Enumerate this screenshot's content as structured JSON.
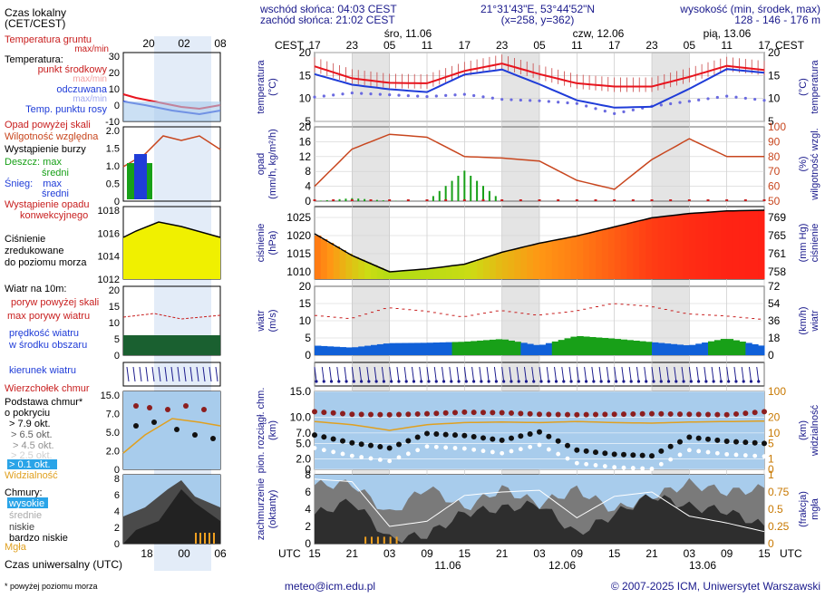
{
  "header": {
    "sunrise": "wschód słońca: 04:03 CEST",
    "sunset": "zachód słońca: 21:02 CEST",
    "coords": "21°31'43\"E, 53°44'52\"N",
    "grid": "(x=258,  y=362)",
    "elevation_label": "wysokość (min, środek, max)",
    "elevation_values": "128 - 146 - 176 m"
  },
  "time_axis": {
    "top_tz": "CEST",
    "bottom_tz": "UTC",
    "top_hours": [
      "17",
      "23",
      "05",
      "11",
      "17",
      "23",
      "05",
      "11",
      "17",
      "23",
      "05",
      "11",
      "17"
    ],
    "bottom_hours": [
      "15",
      "21",
      "03",
      "09",
      "15",
      "21",
      "03",
      "09",
      "15",
      "21",
      "03",
      "09",
      "15"
    ],
    "days_top": [
      "śro, 11.06",
      "czw, 12.06",
      "pią, 13.06"
    ],
    "days_bottom": [
      "11.06",
      "12.06",
      "13.06"
    ],
    "legend_top_hours": [
      "20",
      "02",
      "08"
    ],
    "legend_bottom_hours": [
      "18",
      "00",
      "06"
    ]
  },
  "legend": {
    "czas_lokalny": "Czas lokalny",
    "cet_cest": "(CET/CEST)",
    "temp_gruntu": "Temperatura gruntu",
    "temp_gruntu_sub": "max/min",
    "temperatura": "Temperatura:",
    "punkt_srodkowy": "punkt środkowy",
    "max_min": "max/min",
    "odczuwana": "odczuwana",
    "odczuwana_sub": "max/min",
    "temp_rosy": "Temp. punktu rosy",
    "opad_powyzej": "Opad powyżej skali",
    "wilgotnosc": "Wilgotność względna",
    "burza": "Wystąpienie burzy",
    "deszcz": "Deszcz: max",
    "deszcz_sredni": "średni",
    "snieg": "Śnieg:",
    "snieg_max": "max",
    "snieg_sredni": "średni",
    "wystapienie_opadu": "Wystąpienie opadu",
    "konwekcyjnego": "konwekcyjnego",
    "cisnienie_1": "Ciśnienie",
    "cisnienie_2": "zredukowane",
    "cisnienie_3": "do poziomu morza",
    "wiatr_na": "Wiatr na 10m:",
    "poryw_powyzej": "poryw powyżej skali",
    "max_porywy": "max porywy wiatru",
    "predkosc_1": "prędkość wiatru",
    "predkosc_2": "w środku obszaru",
    "kierunek": "kierunek wiatru",
    "wierzcholek": "Wierzchołek chmur",
    "podstawa": "Podstawa chmur*",
    "o_pokryciu": "o pokryciu",
    "okt79": "> 7.9 okt.",
    "okt65": "> 6.5 okt.",
    "okt45": "> 4.5 okt.",
    "okt25": "> 2.5 okt.",
    "okt01": "> 0.1 okt.",
    "widzialnosc": "Widzialność",
    "chmury": "Chmury:",
    "wysokie": "wysokie",
    "srednie": "średnie",
    "niskie": "niskie",
    "bardzo_niskie": "bardzo niskie",
    "mgla": "Mgła",
    "czas_uniwersalny": "Czas uniwersalny (UTC)",
    "footnote": "* powyżej poziomu morza"
  },
  "panel_labels": {
    "temp": [
      "temperatura",
      "(°C)"
    ],
    "temp_right": [
      "(°C)",
      "temperatura"
    ],
    "precip": [
      "opad",
      "(mm/h, kg/m²/h)"
    ],
    "precip_right": [
      "(%)",
      "wilgotność wzgl."
    ],
    "press": [
      "ciśnienie",
      "(hPa)"
    ],
    "press_right": [
      "(mm Hg)",
      "ciśnienie"
    ],
    "wind": [
      "wiatr",
      "(m/s)"
    ],
    "wind_right": [
      "(km/h)",
      "wiatr"
    ],
    "cloud": [
      "pion. rozciągł. chm.",
      "(km)"
    ],
    "cloud_right": [
      "(km)",
      "widzialność"
    ],
    "cover": [
      "zachmurzenie",
      "(oktanty)"
    ],
    "cover_right": [
      "(frakcja)",
      "mgła"
    ]
  },
  "footer": {
    "email": "meteo@icm.edu.pl",
    "copyright": "© 2007-2025 ICM, Uniwersytet Warszawski"
  },
  "colors": {
    "temp": "#e8141e",
    "feel": "#1f3cd8",
    "dew": "#6a6ae0",
    "humidity": "#c8461e",
    "rain": "#18a018",
    "press_line": "#000000",
    "night": "#d8d8d8",
    "sky": "#a8ccec",
    "wind_green": "#18a018",
    "wind_blue": "#1060d8",
    "label": "#1a1a8c"
  },
  "chart_data": [
    {
      "type": "line",
      "name": "temperature",
      "ylim": [
        5,
        20
      ],
      "yticks": [
        "5",
        "10",
        "15",
        "20"
      ],
      "x": [
        0,
        6,
        12,
        18,
        24,
        30,
        36,
        42,
        48,
        54,
        60,
        66,
        72
      ],
      "series": [
        {
          "name": "temperature",
          "values": [
            17.0,
            14.4,
            13.4,
            13.3,
            16.0,
            17.6,
            15.3,
            13.3,
            12.6,
            12.6,
            14.7,
            17.1,
            16.2
          ]
        },
        {
          "name": "feels_like",
          "values": [
            15.3,
            13.0,
            12.0,
            11.4,
            15.2,
            16.3,
            13.1,
            9.6,
            8.0,
            8.2,
            12.1,
            16.4,
            15.6
          ]
        },
        {
          "name": "dew_point",
          "values": [
            10.3,
            11.2,
            10.8,
            10.4,
            10.9,
            9.8,
            9.5,
            8.9,
            6.7,
            8.3,
            9.4,
            10.5,
            9.6
          ]
        }
      ]
    },
    {
      "type": "bar",
      "name": "precipitation_humidity",
      "ylim": [
        0,
        20
      ],
      "yticks": [
        "0",
        "4",
        "8",
        "12",
        "16",
        "20"
      ],
      "y2lim": [
        50,
        100
      ],
      "y2ticks": [
        "50",
        "60",
        "70",
        "80",
        "90",
        "100"
      ],
      "x": [
        0,
        6,
        12,
        18,
        24,
        30,
        36,
        42,
        48,
        54,
        60,
        66,
        72
      ],
      "series": [
        {
          "name": "humidity",
          "values": [
            60,
            85,
            95,
            93,
            80,
            79,
            77,
            64,
            58,
            78,
            92,
            80,
            80
          ]
        },
        {
          "name": "rain_max",
          "values": [
            0,
            0.8,
            0.1,
            0,
            8.2,
            0,
            0,
            0,
            0,
            0,
            0,
            0,
            0
          ]
        }
      ]
    },
    {
      "type": "area",
      "name": "pressure",
      "ylim": [
        1008,
        1028
      ],
      "yticks": [
        "1010",
        "1015",
        "1020",
        "1025"
      ],
      "y2ticks": [
        "758",
        "761",
        "765",
        "769"
      ],
      "x": [
        0,
        6,
        12,
        18,
        24,
        30,
        36,
        42,
        48,
        54,
        60,
        66,
        72
      ],
      "values": [
        1020.5,
        1014.5,
        1010.0,
        1010.8,
        1012.1,
        1015.4,
        1017.9,
        1019.9,
        1022.4,
        1024.9,
        1026.1,
        1026.8,
        1027.0
      ]
    },
    {
      "type": "area",
      "name": "wind",
      "ylim": [
        0,
        20
      ],
      "yticks": [
        "0",
        "5",
        "10",
        "15",
        "20"
      ],
      "y2ticks": [
        "0",
        "18",
        "36",
        "54",
        "72"
      ],
      "x": [
        0,
        6,
        12,
        18,
        24,
        30,
        36,
        42,
        48,
        54,
        60,
        66,
        72
      ],
      "series": [
        {
          "name": "gusts",
          "values": [
            11.6,
            10.6,
            13.8,
            12.8,
            11.1,
            13.0,
            11.6,
            12.8,
            15.0,
            14.2,
            12.0,
            11.4,
            10.4
          ]
        },
        {
          "name": "speed",
          "values": [
            2.8,
            2.2,
            3.5,
            3.6,
            3.9,
            4.7,
            2.8,
            5.6,
            4.8,
            3.8,
            2.8,
            4.9,
            2.6
          ]
        }
      ]
    },
    {
      "type": "scatter",
      "name": "clouds_visibility",
      "ylim": [
        0,
        15
      ],
      "yticks": [
        "0",
        "2.0",
        "5.0",
        "7.0",
        "10.0",
        "15.0"
      ],
      "y2ticks": [
        "0",
        "1",
        "5",
        "10",
        "20",
        "100"
      ],
      "x": [
        0,
        6,
        12,
        18,
        24,
        30,
        36,
        42,
        48,
        54,
        60,
        66,
        72
      ],
      "series": [
        {
          "name": "cloud_top",
          "values": [
            11.1,
            10.6,
            10.5,
            10.7,
            11.0,
            10.9,
            10.6,
            10.5,
            10.6,
            10.7,
            10.6,
            10.5,
            11.1
          ]
        },
        {
          "name": "cloud_base",
          "values": [
            6.6,
            5.1,
            4.1,
            6.9,
            6.5,
            5.6,
            7.2,
            3.7,
            2.9,
            2.6,
            6.2,
            5.4,
            5.0
          ]
        }
      ]
    },
    {
      "type": "area",
      "name": "cloud_cover",
      "ylim": [
        0,
        8
      ],
      "yticks": [
        "0",
        "2",
        "4",
        "6",
        "8"
      ],
      "y2ticks": [
        "0",
        "0.25",
        "0.5",
        "0.75",
        "1"
      ],
      "x": [
        0,
        6,
        12,
        18,
        24,
        30,
        36,
        42,
        48,
        54,
        60,
        66,
        72
      ],
      "series": [
        {
          "name": "high",
          "values": [
            6.8,
            7.0,
            3.4,
            6.6,
            4.1,
            6.4,
            4.6,
            6.3,
            3.9,
            5.5,
            7.0,
            6.0,
            6.4
          ]
        },
        {
          "name": "low",
          "values": [
            3.4,
            5.0,
            0.5,
            1.0,
            3.6,
            4.1,
            4.6,
            1.1,
            3.4,
            5.6,
            4.3,
            3.8,
            2.0
          ]
        }
      ]
    }
  ]
}
